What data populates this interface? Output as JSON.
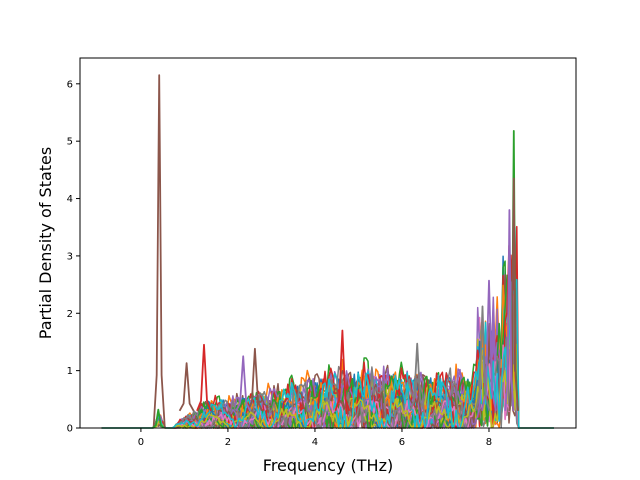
{
  "chart_data": {
    "type": "line",
    "title": "",
    "xlabel": "Frequency (THz)",
    "ylabel": "Partial Density of States",
    "xlim": [
      -1.4,
      10.0
    ],
    "ylim": [
      0,
      6.45
    ],
    "xticks": [
      0,
      2,
      4,
      6,
      8
    ],
    "yticks": [
      0,
      1,
      2,
      3,
      4,
      5,
      6
    ],
    "x_tick_labels": [
      "0",
      "2",
      "4",
      "6",
      "8"
    ],
    "y_tick_labels": [
      "0",
      "1",
      "2",
      "3",
      "4",
      "5",
      "6"
    ],
    "grid": false,
    "legend": "none",
    "series_count": 40,
    "colors": [
      "#1f77b4",
      "#ff7f0e",
      "#2ca02c",
      "#d62728",
      "#9467bd",
      "#8c564b",
      "#e377c2",
      "#7f7f7f",
      "#bcbd22",
      "#17becf"
    ],
    "notable_peaks": [
      {
        "x": 0.42,
        "y": 6.15,
        "color": "#8c564b"
      },
      {
        "x": 8.57,
        "y": 5.18,
        "color": "#2ca02c"
      },
      {
        "x": 8.57,
        "y": 4.35,
        "color": "#8c564b"
      },
      {
        "x": 8.47,
        "y": 3.8,
        "color": "#9467bd"
      },
      {
        "x": 8.0,
        "y": 2.57,
        "color": "#9467bd"
      },
      {
        "x": 7.85,
        "y": 2.12,
        "color": "#7f7f7f"
      },
      {
        "x": 4.63,
        "y": 1.7,
        "color": "#d62728"
      },
      {
        "x": 1.45,
        "y": 1.45,
        "color": "#d62728"
      },
      {
        "x": 6.35,
        "y": 1.47,
        "color": "#7f7f7f"
      },
      {
        "x": 2.62,
        "y": 1.38,
        "color": "#8c564b"
      },
      {
        "x": 2.35,
        "y": 1.25,
        "color": "#9467bd"
      },
      {
        "x": 1.05,
        "y": 1.13,
        "color": "#8c564b"
      },
      {
        "x": 0.4,
        "y": 0.32,
        "color": "#2ca02c"
      }
    ],
    "x_range_data": [
      -0.9,
      9.5
    ],
    "band_cutoff": 8.65,
    "bulk_envelope": [
      {
        "x": 0.8,
        "y": 0.05
      },
      {
        "x": 1.5,
        "y": 0.35
      },
      {
        "x": 2.5,
        "y": 0.4
      },
      {
        "x": 3.5,
        "y": 0.55
      },
      {
        "x": 4.5,
        "y": 0.7
      },
      {
        "x": 5.5,
        "y": 0.75
      },
      {
        "x": 6.5,
        "y": 0.65
      },
      {
        "x": 7.5,
        "y": 0.7
      },
      {
        "x": 8.3,
        "y": 0.9
      }
    ]
  }
}
